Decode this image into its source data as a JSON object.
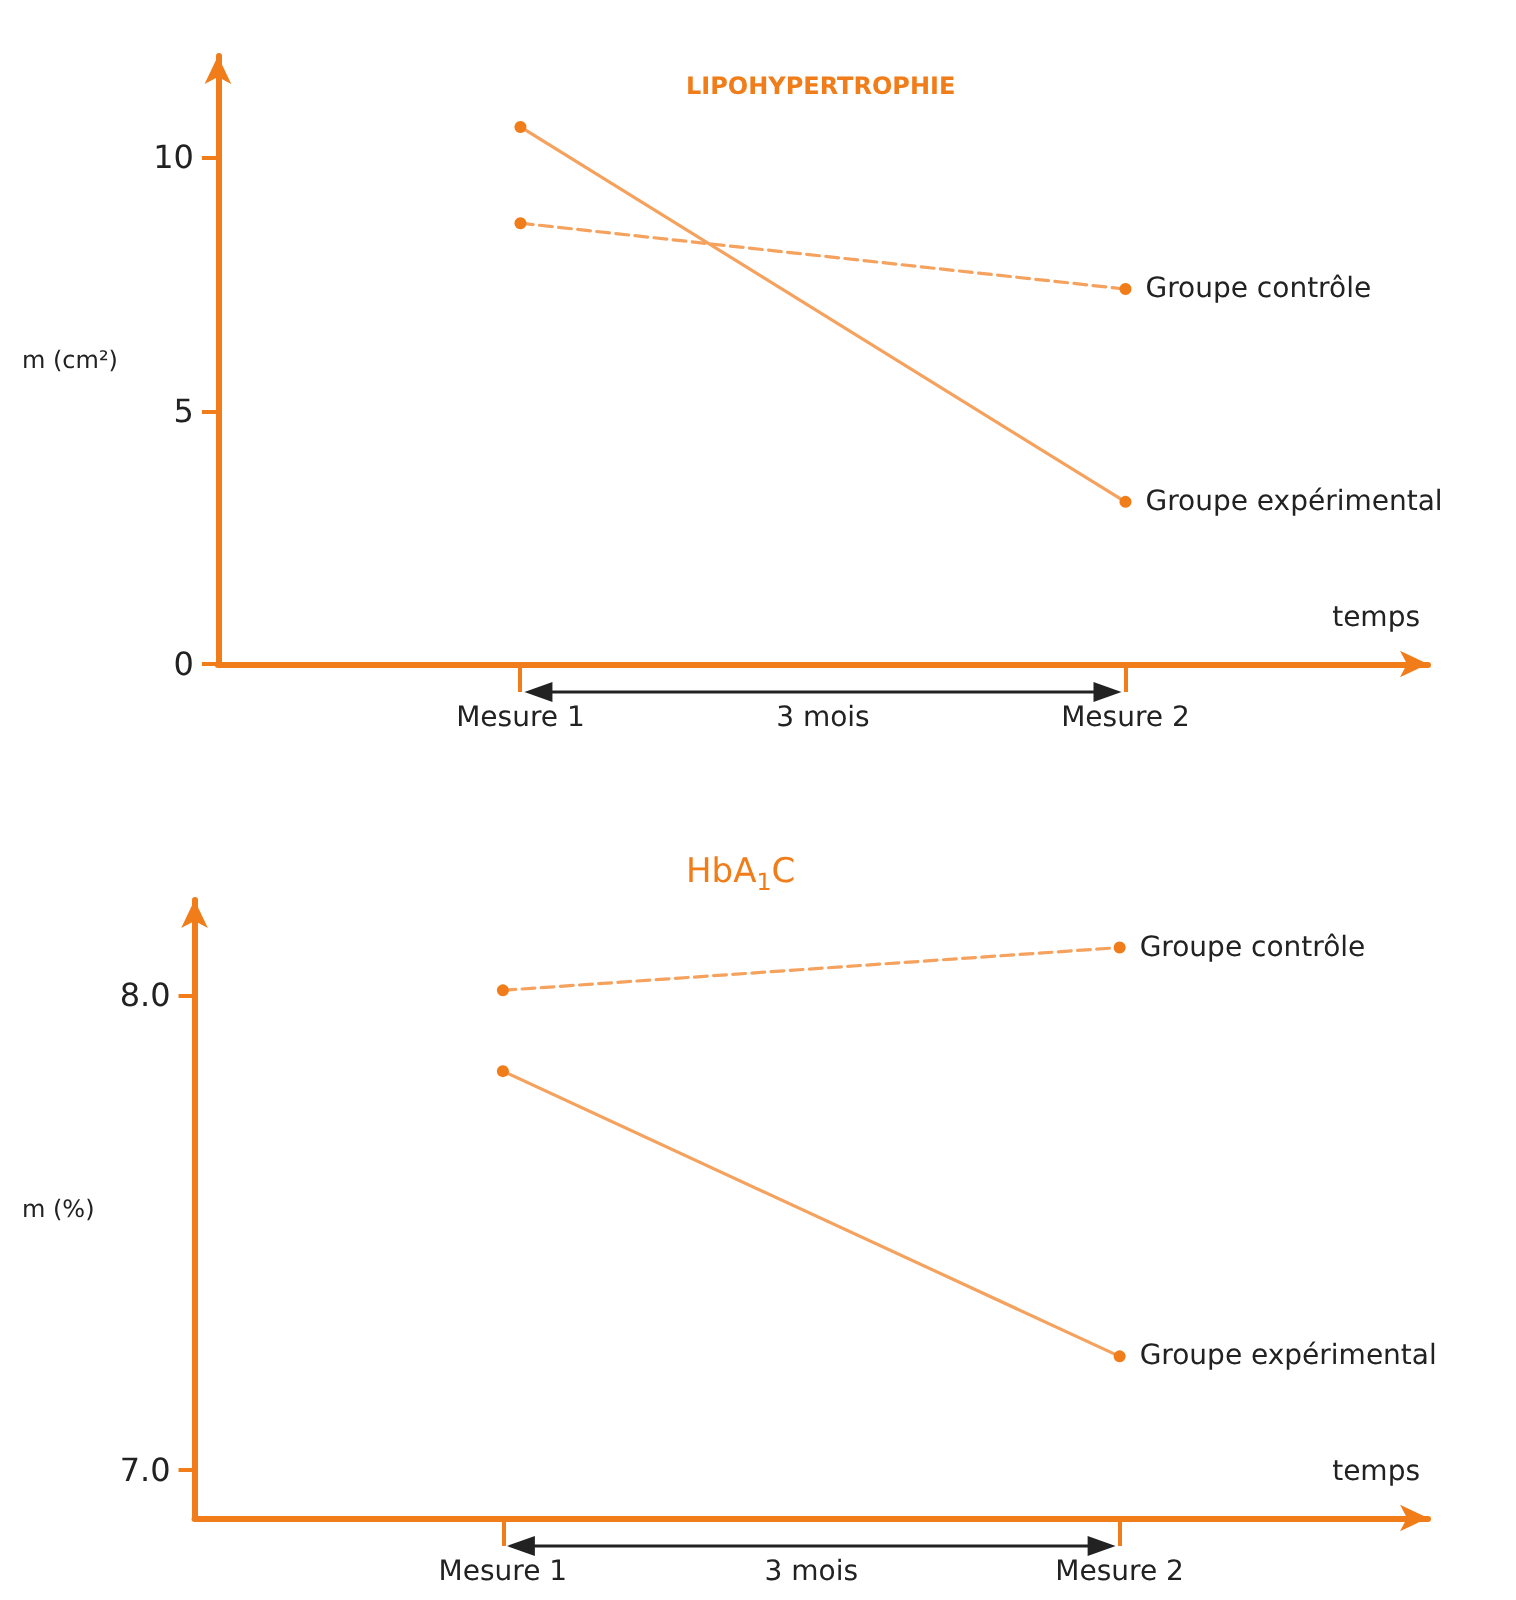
{
  "chart_data": [
    {
      "type": "line",
      "title": "LIPOHYPERTROPHIE",
      "ylabel": "m (cm²)",
      "xlabel": "temps",
      "categories": [
        "Mesure 1",
        "Mesure 2"
      ],
      "series": [
        {
          "name": "Groupe contrôle",
          "color": "#f5a25e",
          "values": [
            8.7,
            7.4
          ],
          "line_style": "dashed"
        },
        {
          "name": "Groupe expérimental",
          "color": "#f5a25e",
          "values": [
            10.6,
            3.2
          ],
          "line_style": "solid"
        }
      ],
      "ylim": [
        0,
        12
      ],
      "yticks": [
        0,
        5,
        10
      ],
      "annotations": [
        "3 mois"
      ],
      "marker": "circle",
      "grid": false,
      "legend": false
    },
    {
      "type": "line",
      "title": "HbA$_{1}$C",
      "ylabel": "m (%)",
      "xlabel": "temps",
      "categories": [
        "Mesure 1",
        "Mesure 2"
      ],
      "series": [
        {
          "name": "Groupe contrôle",
          "color": "#f5a25e",
          "values": [
            8.01,
            8.1
          ],
          "line_style": "dashed"
        },
        {
          "name": "Groupe expérimental",
          "color": "#f5a25e",
          "values": [
            7.84,
            7.24
          ],
          "line_style": "solid"
        }
      ],
      "ylim": [
        6.9,
        8.2
      ],
      "yticks": [
        {
          "value": 8,
          "label": "8.0"
        },
        {
          "value": 7,
          "label": "7.0"
        }
      ],
      "annotations": [
        "3 mois"
      ],
      "marker": "circle",
      "grid": false,
      "legend": false
    }
  ]
}
